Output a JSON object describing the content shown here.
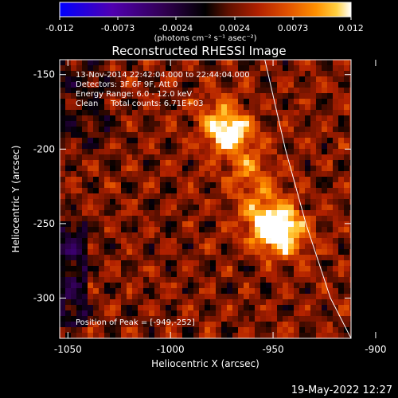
{
  "colorbar": {
    "ticks": [
      "-0.012",
      "-0.0073",
      "-0.0024",
      "0.0024",
      "0.0073",
      "0.012"
    ],
    "unit_label": "(photons cm⁻² s⁻¹ asec⁻²)"
  },
  "title": "Reconstructed RHESSI Image",
  "annotations": {
    "line1": "13-Nov-2014 22:42:04.000 to 22:44:04.000",
    "line2": "Detectors: 3F 6F 9F, Att 0",
    "line3": "Energy Range: 6.0 - 12.0 keV",
    "line4": "Clean     Total counts: 6.71E+03",
    "peak": "Position of Peak = [-949,-252]"
  },
  "footer": {
    "date": "19-May-2022 12:27"
  },
  "chart_data": {
    "type": "heatmap",
    "title": "Reconstructed RHESSI Image",
    "xlabel": "Heliocentric X (arcsec)",
    "ylabel": "Heliocentric Y (arcsec)",
    "xlim": [
      -1054,
      -912
    ],
    "ylim": [
      -327,
      -140
    ],
    "xticks": [
      {
        "value": -1050,
        "label": "-1050"
      },
      {
        "value": -1000,
        "label": "-1000"
      },
      {
        "value": -950,
        "label": "-950"
      },
      {
        "value": -900,
        "label": "-900"
      }
    ],
    "yticks": [
      {
        "value": -150,
        "label": "-150"
      },
      {
        "value": -200,
        "label": "-200"
      },
      {
        "value": -250,
        "label": "-250"
      },
      {
        "value": -300,
        "label": "-300"
      }
    ],
    "color_range": [
      -0.012,
      0.012
    ],
    "colormap": [
      "#0000ff",
      "#5000b0",
      "#300050",
      "#000000",
      "#601000",
      "#b02000",
      "#e05000",
      "#ff9000",
      "#ffd040",
      "#ffffff"
    ],
    "sources": [
      {
        "x": -949,
        "y": -252,
        "peak": 0.012
      },
      {
        "x": -972,
        "y": -188,
        "peak": 0.0085
      }
    ],
    "limb_curve": [
      [
        -954,
        -140
      ],
      [
        -944,
        -200
      ],
      [
        -934,
        -250
      ],
      [
        -922,
        -300
      ],
      [
        -912,
        -327
      ]
    ],
    "peak_position": [
      -949,
      -252
    ]
  }
}
